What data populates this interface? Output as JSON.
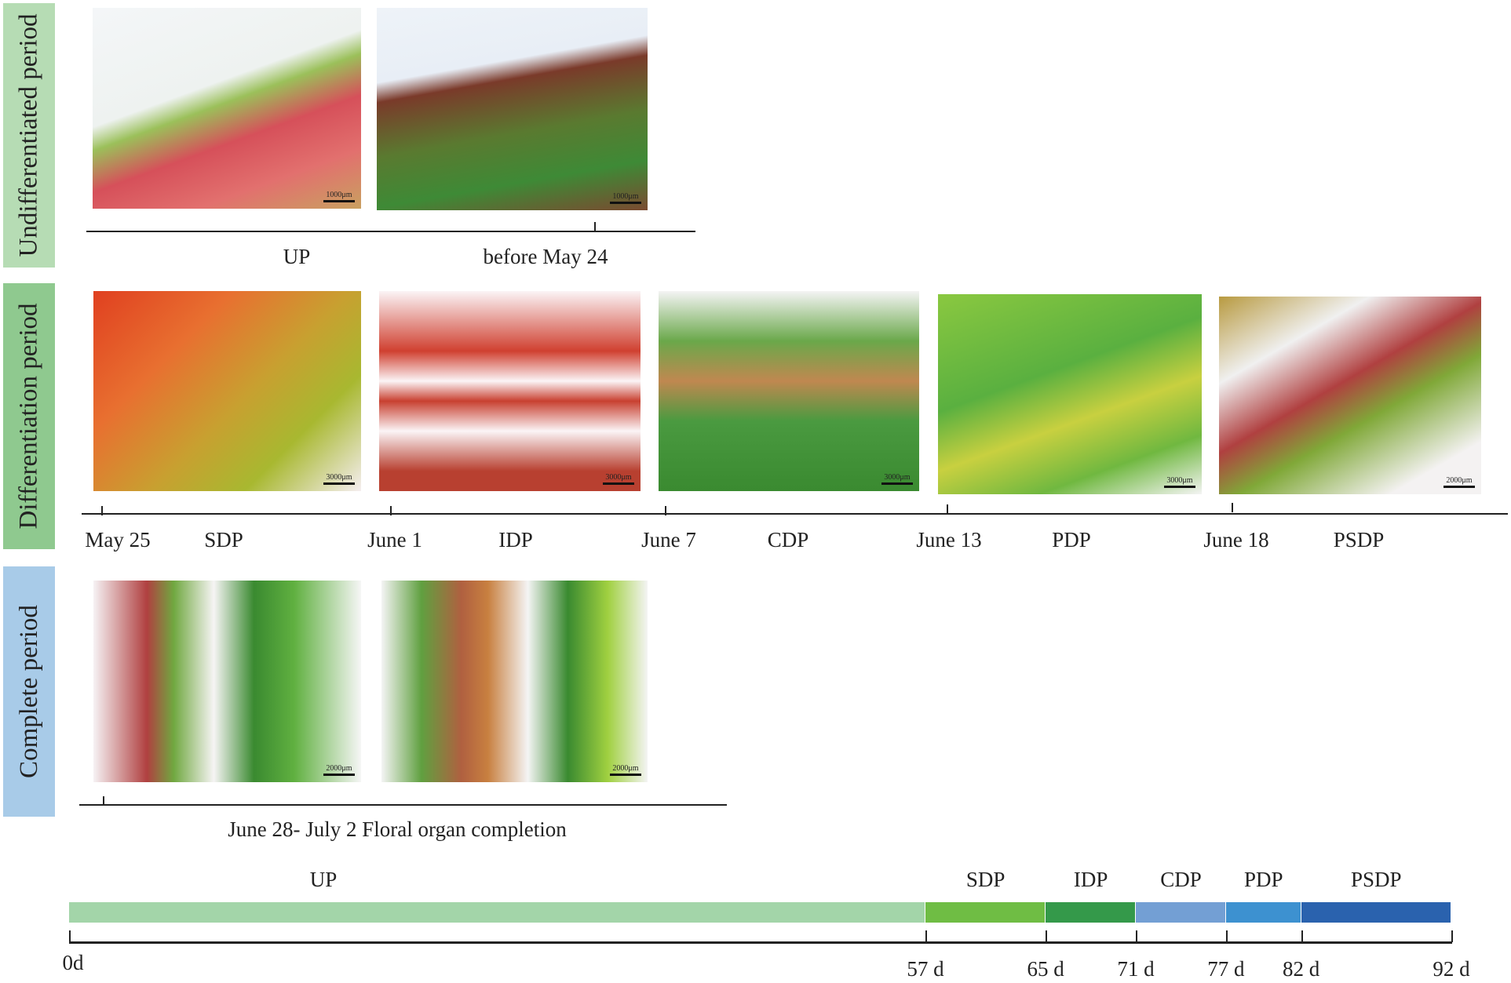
{
  "periods": {
    "undifferentiated": "Undifferentiated period",
    "differentiation": "Differentiation period",
    "complete": "Complete period"
  },
  "row1": {
    "photos": [
      {
        "scale": "1000μm"
      },
      {
        "scale": "1000μm"
      }
    ],
    "stage": "UP",
    "date": "before May 24"
  },
  "row2": {
    "items": [
      {
        "date": "May 25",
        "stage": "SDP",
        "scale": "3000μm"
      },
      {
        "date": "June 1",
        "stage": "IDP",
        "scale": "3000μm"
      },
      {
        "date": "June 7",
        "stage": "CDP",
        "scale": "3000μm"
      },
      {
        "date": "June 13",
        "stage": "PDP",
        "scale": "3000μm"
      },
      {
        "date": "June 18",
        "stage": "PSDP",
        "scale": "2000μm"
      }
    ]
  },
  "row3": {
    "photos": [
      {
        "scale": "2000μm"
      },
      {
        "scale": "2000μm"
      }
    ],
    "caption": "June 28- July 2 Floral organ completion"
  },
  "timeline": {
    "segments": [
      {
        "label": "UP",
        "start": 0,
        "end": 57,
        "color": "#a3d5a9"
      },
      {
        "label": "SDP",
        "start": 57,
        "end": 65,
        "color": "#6fbd44"
      },
      {
        "label": "IDP",
        "start": 65,
        "end": 71,
        "color": "#34994a"
      },
      {
        "label": "CDP",
        "start": 71,
        "end": 77,
        "color": "#739fd4"
      },
      {
        "label": "PDP",
        "start": 77,
        "end": 82,
        "color": "#3d91d0"
      },
      {
        "label": "PSDP",
        "start": 82,
        "end": 92,
        "color": "#2a62ae"
      }
    ],
    "ticks": [
      "0d",
      "57 d",
      "65 d",
      "71 d",
      "77 d",
      "82 d",
      "92 d"
    ]
  },
  "colors": {
    "undiff_bg": "#b6dcb4",
    "diff_bg": "#8fc98f",
    "complete_bg": "#a8cbe8"
  }
}
